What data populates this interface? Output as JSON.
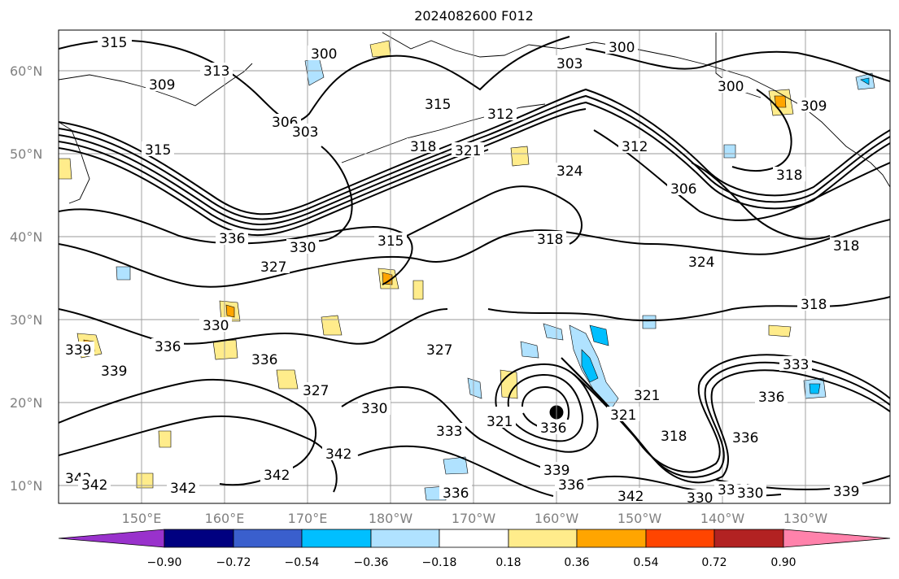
{
  "title": "2024082600 F012",
  "lat_labels": [
    "60°N",
    "50°N",
    "40°N",
    "30°N",
    "20°N",
    "10°N"
  ],
  "lon_labels": [
    "150°E",
    "160°E",
    "170°E",
    "180°W",
    "170°W",
    "160°W",
    "150°W",
    "140°W",
    "130°W"
  ],
  "colorbar": {
    "ticks": [
      "−0.90",
      "−0.72",
      "−0.54",
      "−0.36",
      "−0.18",
      "0.18",
      "0.36",
      "0.54",
      "0.72",
      "0.90"
    ],
    "colors": [
      "#9932cc",
      "#000080",
      "#3a5fcd",
      "#00bfff",
      "#b0e2ff",
      "#ffffff",
      "#ffec8b",
      "#ffa500",
      "#ff4500",
      "#b22222",
      "#ff82ab"
    ]
  },
  "contour_labels": [
    {
      "text": "315"
    },
    {
      "text": "300"
    },
    {
      "text": "313"
    },
    {
      "text": "309"
    },
    {
      "text": "306"
    },
    {
      "text": "303"
    },
    {
      "text": "300"
    },
    {
      "text": "303"
    },
    {
      "text": "300"
    },
    {
      "text": "309"
    },
    {
      "text": "315"
    },
    {
      "text": "312"
    },
    {
      "text": "318"
    },
    {
      "text": "321"
    },
    {
      "text": "312"
    },
    {
      "text": "306"
    },
    {
      "text": "318"
    },
    {
      "text": "315"
    },
    {
      "text": "336"
    },
    {
      "text": "330"
    },
    {
      "text": "327"
    },
    {
      "text": "315"
    },
    {
      "text": "318"
    },
    {
      "text": "324"
    },
    {
      "text": "318"
    },
    {
      "text": "318"
    },
    {
      "text": "330"
    },
    {
      "text": "336"
    },
    {
      "text": "339"
    },
    {
      "text": "339"
    },
    {
      "text": "336"
    },
    {
      "text": "327"
    },
    {
      "text": "330"
    },
    {
      "text": "333"
    },
    {
      "text": "327"
    },
    {
      "text": "321"
    },
    {
      "text": "336"
    },
    {
      "text": "321"
    },
    {
      "text": "318"
    },
    {
      "text": "333"
    },
    {
      "text": "336"
    },
    {
      "text": "336"
    },
    {
      "text": "342"
    },
    {
      "text": "342"
    },
    {
      "text": "342"
    },
    {
      "text": "342"
    },
    {
      "text": "336"
    },
    {
      "text": "336"
    },
    {
      "text": "339"
    },
    {
      "text": "342"
    },
    {
      "text": "330"
    },
    {
      "text": "333"
    },
    {
      "text": "330"
    },
    {
      "text": "339"
    },
    {
      "text": "342"
    },
    {
      "text": "324"
    },
    {
      "text": "321"
    }
  ]
}
